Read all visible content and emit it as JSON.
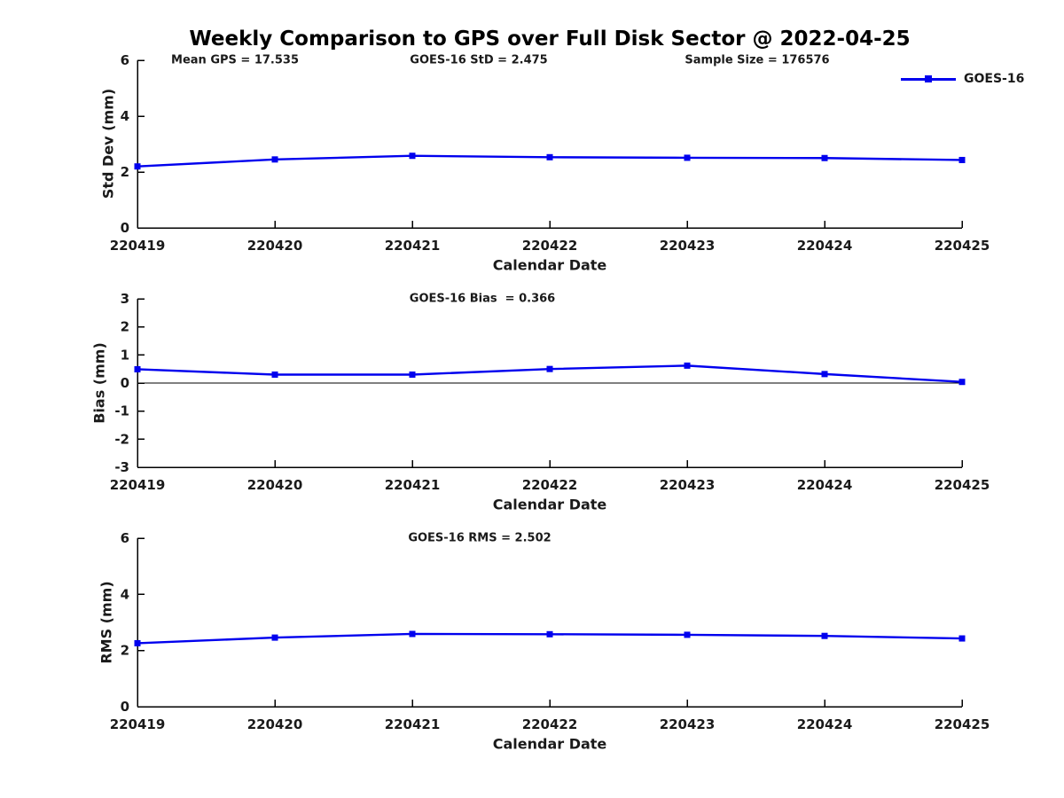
{
  "title": "Weekly Comparison to GPS over Full Disk Sector @ 2022-04-25",
  "legend": {
    "label": "GOES-16",
    "position": "top-right"
  },
  "colors": {
    "line": "#0000ee",
    "axis": "#000000",
    "text": "#1a1a1a"
  },
  "chart_data": [
    {
      "type": "line",
      "name": "std-dev",
      "ylabel": "Std Dev (mm)",
      "xlabel": "Calendar Date",
      "ylim": [
        0,
        6
      ],
      "yticks": [
        0,
        2,
        4,
        6
      ],
      "zero_line": false,
      "grid": false,
      "categories": [
        "220419",
        "220420",
        "220421",
        "220422",
        "220423",
        "220424",
        "220425"
      ],
      "series": [
        {
          "name": "GOES-16",
          "values": [
            2.2,
            2.45,
            2.58,
            2.53,
            2.51,
            2.5,
            2.43
          ]
        }
      ],
      "annotations": [
        {
          "text": "Mean GPS = 17.535"
        },
        {
          "text": "GOES-16 StD = 2.475"
        },
        {
          "text": "Sample Size = 176576"
        }
      ]
    },
    {
      "type": "line",
      "name": "bias",
      "ylabel": "Bias (mm)",
      "xlabel": "Calendar Date",
      "ylim": [
        -3,
        3
      ],
      "yticks": [
        -3,
        -2,
        -1,
        0,
        1,
        2,
        3
      ],
      "zero_line": true,
      "grid": false,
      "categories": [
        "220419",
        "220420",
        "220421",
        "220422",
        "220423",
        "220424",
        "220425"
      ],
      "series": [
        {
          "name": "GOES-16",
          "values": [
            0.49,
            0.3,
            0.3,
            0.5,
            0.62,
            0.32,
            0.04
          ]
        }
      ],
      "annotations": [
        {
          "text": "GOES-16 Bias  = 0.366"
        }
      ]
    },
    {
      "type": "line",
      "name": "rms",
      "ylabel": "RMS (mm)",
      "xlabel": "Calendar Date",
      "ylim": [
        0,
        6
      ],
      "yticks": [
        0,
        2,
        4,
        6
      ],
      "zero_line": false,
      "grid": false,
      "categories": [
        "220419",
        "220420",
        "220421",
        "220422",
        "220423",
        "220424",
        "220425"
      ],
      "series": [
        {
          "name": "GOES-16",
          "values": [
            2.26,
            2.46,
            2.59,
            2.58,
            2.56,
            2.52,
            2.43
          ]
        }
      ],
      "annotations": [
        {
          "text": "GOES-16 RMS = 2.502"
        }
      ]
    }
  ]
}
